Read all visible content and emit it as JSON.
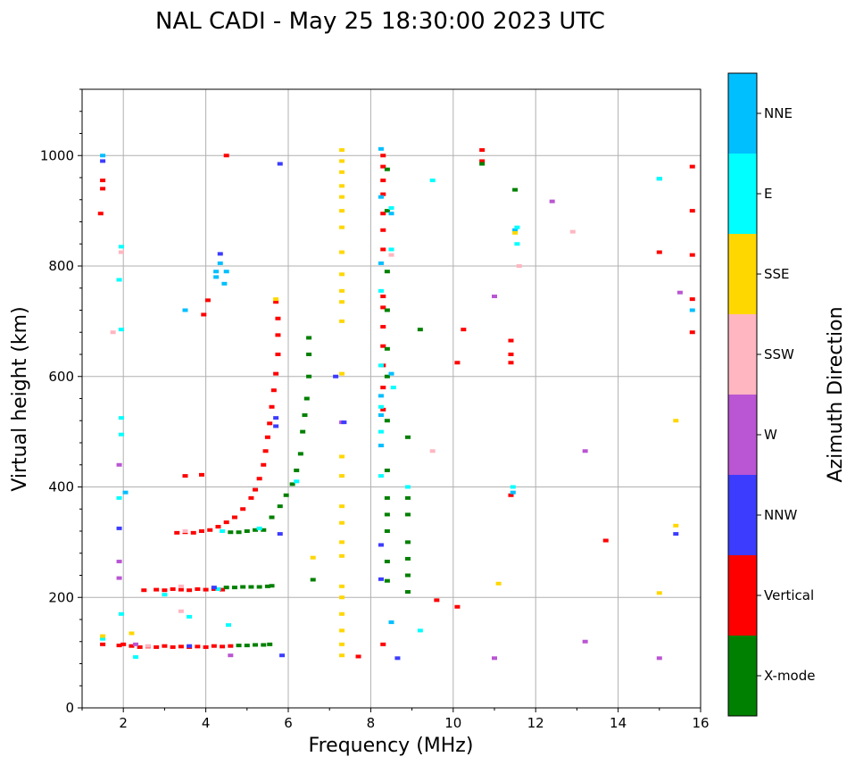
{
  "chart_data": {
    "type": "scatter",
    "title": "NAL CADI - May 25 18:30:00 2023 UTC",
    "xlabel": "Frequency (MHz)",
    "ylabel": "Virtual height (km)",
    "xlim": [
      1.0,
      16.0
    ],
    "ylim": [
      0,
      1120
    ],
    "xticks": [
      2,
      4,
      6,
      8,
      10,
      12,
      14,
      16
    ],
    "yticks": [
      0,
      200,
      400,
      600,
      800,
      1000
    ],
    "grid": true,
    "colorbar": {
      "label": "Azimuth Direction",
      "entries": [
        {
          "name": "NNE",
          "color": "#00bfff"
        },
        {
          "name": "E",
          "color": "#00ffff"
        },
        {
          "name": "SSE",
          "color": "#ffd700"
        },
        {
          "name": "SSW",
          "color": "#ffb6c1"
        },
        {
          "name": "W",
          "color": "#ba55d3"
        },
        {
          "name": "NNW",
          "color": "#3c3cff"
        },
        {
          "name": "Vertical",
          "color": "#ff0000"
        },
        {
          "name": "X-mode",
          "color": "#008000"
        }
      ]
    },
    "series": [
      {
        "name": "Vertical",
        "color": "#ff0000",
        "points": [
          [
            1.5,
            115
          ],
          [
            1.9,
            113
          ],
          [
            2.0,
            115
          ],
          [
            2.2,
            112
          ],
          [
            2.4,
            110
          ],
          [
            2.6,
            111
          ],
          [
            2.8,
            110
          ],
          [
            3.0,
            112
          ],
          [
            3.2,
            110
          ],
          [
            3.4,
            111
          ],
          [
            3.6,
            110
          ],
          [
            3.8,
            111
          ],
          [
            4.0,
            110
          ],
          [
            4.2,
            112
          ],
          [
            4.4,
            111
          ],
          [
            4.6,
            112
          ],
          [
            2.5,
            213
          ],
          [
            2.8,
            214
          ],
          [
            3.0,
            213
          ],
          [
            3.2,
            215
          ],
          [
            3.4,
            214
          ],
          [
            3.6,
            213
          ],
          [
            3.8,
            215
          ],
          [
            4.0,
            214
          ],
          [
            4.2,
            215
          ],
          [
            4.4,
            214
          ],
          [
            3.3,
            317
          ],
          [
            3.5,
            318
          ],
          [
            3.7,
            317
          ],
          [
            3.9,
            320
          ],
          [
            4.1,
            322
          ],
          [
            4.3,
            328
          ],
          [
            4.5,
            336
          ],
          [
            4.7,
            345
          ],
          [
            4.9,
            360
          ],
          [
            5.1,
            380
          ],
          [
            5.2,
            395
          ],
          [
            5.3,
            415
          ],
          [
            5.4,
            440
          ],
          [
            5.45,
            465
          ],
          [
            5.5,
            490
          ],
          [
            5.55,
            515
          ],
          [
            5.6,
            545
          ],
          [
            5.65,
            575
          ],
          [
            5.7,
            605
          ],
          [
            5.75,
            640
          ],
          [
            5.75,
            675
          ],
          [
            5.75,
            705
          ],
          [
            5.7,
            735
          ],
          [
            3.5,
            420
          ],
          [
            3.9,
            422
          ],
          [
            3.95,
            712
          ],
          [
            4.05,
            738
          ],
          [
            4.5,
            1000
          ],
          [
            1.5,
            955
          ],
          [
            1.5,
            940
          ],
          [
            1.45,
            895
          ],
          [
            8.3,
            1000
          ],
          [
            8.3,
            980
          ],
          [
            8.3,
            955
          ],
          [
            8.3,
            930
          ],
          [
            8.3,
            895
          ],
          [
            8.3,
            865
          ],
          [
            8.3,
            830
          ],
          [
            8.3,
            745
          ],
          [
            8.3,
            725
          ],
          [
            8.3,
            690
          ],
          [
            8.3,
            655
          ],
          [
            8.3,
            620
          ],
          [
            8.3,
            580
          ],
          [
            8.3,
            540
          ],
          [
            8.3,
            115
          ],
          [
            10.7,
            1010
          ],
          [
            10.7,
            990
          ],
          [
            11.4,
            665
          ],
          [
            11.4,
            640
          ],
          [
            11.4,
            625
          ],
          [
            11.4,
            385
          ],
          [
            10.1,
            625
          ],
          [
            10.25,
            685
          ],
          [
            10.1,
            183
          ],
          [
            9.6,
            195
          ],
          [
            7.7,
            93
          ],
          [
            13.7,
            303
          ],
          [
            15.0,
            825
          ],
          [
            15.8,
            980
          ],
          [
            15.8,
            900
          ],
          [
            15.8,
            820
          ],
          [
            15.8,
            740
          ],
          [
            15.8,
            680
          ]
        ]
      },
      {
        "name": "X-mode",
        "color": "#008000",
        "points": [
          [
            4.8,
            113
          ],
          [
            5.0,
            113
          ],
          [
            5.2,
            114
          ],
          [
            5.4,
            114
          ],
          [
            5.55,
            115
          ],
          [
            4.5,
            218
          ],
          [
            4.7,
            218
          ],
          [
            4.9,
            219
          ],
          [
            5.1,
            219
          ],
          [
            5.3,
            219
          ],
          [
            5.5,
            220
          ],
          [
            5.6,
            221
          ],
          [
            4.6,
            318
          ],
          [
            4.8,
            318
          ],
          [
            5.0,
            320
          ],
          [
            5.2,
            322
          ],
          [
            5.4,
            322
          ],
          [
            5.6,
            345
          ],
          [
            5.8,
            365
          ],
          [
            5.95,
            385
          ],
          [
            6.1,
            405
          ],
          [
            6.2,
            430
          ],
          [
            6.3,
            460
          ],
          [
            6.35,
            500
          ],
          [
            6.4,
            530
          ],
          [
            6.45,
            560
          ],
          [
            6.5,
            600
          ],
          [
            6.5,
            640
          ],
          [
            6.5,
            670
          ],
          [
            6.6,
            232
          ],
          [
            8.4,
            975
          ],
          [
            8.4,
            900
          ],
          [
            8.4,
            790
          ],
          [
            8.4,
            720
          ],
          [
            8.4,
            650
          ],
          [
            8.4,
            600
          ],
          [
            8.4,
            520
          ],
          [
            8.4,
            430
          ],
          [
            8.4,
            380
          ],
          [
            8.4,
            350
          ],
          [
            8.4,
            320
          ],
          [
            8.4,
            265
          ],
          [
            8.4,
            230
          ],
          [
            8.9,
            490
          ],
          [
            8.9,
            380
          ],
          [
            8.9,
            350
          ],
          [
            8.9,
            300
          ],
          [
            8.9,
            270
          ],
          [
            8.9,
            240
          ],
          [
            8.9,
            210
          ],
          [
            9.2,
            685
          ],
          [
            11.5,
            938
          ],
          [
            10.7,
            985
          ]
        ]
      },
      {
        "name": "NNE",
        "color": "#00bfff",
        "points": [
          [
            1.5,
            1000
          ],
          [
            4.25,
            790
          ],
          [
            4.35,
            805
          ],
          [
            4.5,
            790
          ],
          [
            4.45,
            768
          ],
          [
            3.5,
            720
          ],
          [
            4.25,
            780
          ],
          [
            2.05,
            390
          ],
          [
            8.25,
            1012
          ],
          [
            8.25,
            925
          ],
          [
            8.25,
            805
          ],
          [
            8.5,
            895
          ],
          [
            8.5,
            605
          ],
          [
            8.25,
            565
          ],
          [
            8.25,
            530
          ],
          [
            8.25,
            475
          ],
          [
            8.5,
            155
          ],
          [
            11.5,
            865
          ],
          [
            11.45,
            390
          ],
          [
            15.0,
            958
          ],
          [
            15.8,
            720
          ]
        ]
      },
      {
        "name": "E",
        "color": "#00ffff",
        "points": [
          [
            1.95,
            835
          ],
          [
            1.9,
            775
          ],
          [
            1.95,
            685
          ],
          [
            1.95,
            525
          ],
          [
            1.95,
            495
          ],
          [
            1.9,
            380
          ],
          [
            1.95,
            170
          ],
          [
            1.5,
            125
          ],
          [
            2.3,
            92
          ],
          [
            3.6,
            165
          ],
          [
            3.0,
            205
          ],
          [
            4.55,
            150
          ],
          [
            4.3,
            215
          ],
          [
            4.4,
            320
          ],
          [
            5.3,
            325
          ],
          [
            6.2,
            410
          ],
          [
            8.25,
            755
          ],
          [
            8.25,
            620
          ],
          [
            8.25,
            500
          ],
          [
            8.25,
            420
          ],
          [
            8.25,
            545
          ],
          [
            8.55,
            580
          ],
          [
            8.5,
            830
          ],
          [
            8.5,
            905
          ],
          [
            8.9,
            400
          ],
          [
            9.5,
            955
          ],
          [
            9.2,
            140
          ],
          [
            11.55,
            870
          ],
          [
            11.55,
            840
          ],
          [
            11.45,
            400
          ],
          [
            15.0,
            958
          ]
        ]
      },
      {
        "name": "SSE",
        "color": "#ffd700",
        "points": [
          [
            7.3,
            1010
          ],
          [
            7.3,
            990
          ],
          [
            7.3,
            970
          ],
          [
            7.3,
            945
          ],
          [
            7.3,
            925
          ],
          [
            7.3,
            900
          ],
          [
            7.3,
            870
          ],
          [
            7.3,
            825
          ],
          [
            7.3,
            785
          ],
          [
            7.3,
            755
          ],
          [
            7.3,
            735
          ],
          [
            7.3,
            700
          ],
          [
            7.3,
            605
          ],
          [
            7.3,
            455
          ],
          [
            7.3,
            420
          ],
          [
            7.3,
            365
          ],
          [
            7.3,
            335
          ],
          [
            7.3,
            300
          ],
          [
            7.3,
            275
          ],
          [
            7.3,
            220
          ],
          [
            7.3,
            200
          ],
          [
            7.3,
            170
          ],
          [
            7.3,
            140
          ],
          [
            7.3,
            115
          ],
          [
            7.3,
            95
          ],
          [
            5.7,
            740
          ],
          [
            6.6,
            272
          ],
          [
            2.2,
            135
          ],
          [
            1.5,
            130
          ],
          [
            11.5,
            860
          ],
          [
            11.1,
            225
          ],
          [
            15.0,
            208
          ],
          [
            15.4,
            520
          ],
          [
            15.4,
            330
          ]
        ]
      },
      {
        "name": "SSW",
        "color": "#ffb6c1",
        "points": [
          [
            1.95,
            825
          ],
          [
            1.75,
            680
          ],
          [
            2.6,
            112
          ],
          [
            3.4,
            220
          ],
          [
            3.4,
            175
          ],
          [
            3.5,
            320
          ],
          [
            8.5,
            820
          ],
          [
            9.5,
            465
          ],
          [
            11.6,
            800
          ],
          [
            12.9,
            862
          ]
        ]
      },
      {
        "name": "W",
        "color": "#ba55d3",
        "points": [
          [
            1.9,
            440
          ],
          [
            1.9,
            265
          ],
          [
            1.9,
            235
          ],
          [
            2.3,
            115
          ],
          [
            4.6,
            95
          ],
          [
            7.3,
            517
          ],
          [
            11.0,
            745
          ],
          [
            12.4,
            917
          ],
          [
            13.2,
            465
          ],
          [
            13.2,
            120
          ],
          [
            11.0,
            90
          ],
          [
            15.0,
            90
          ],
          [
            15.5,
            752
          ]
        ]
      },
      {
        "name": "NNW",
        "color": "#3c3cff",
        "points": [
          [
            1.5,
            990
          ],
          [
            4.35,
            822
          ],
          [
            5.8,
            985
          ],
          [
            5.7,
            525
          ],
          [
            5.7,
            510
          ],
          [
            5.8,
            315
          ],
          [
            5.85,
            95
          ],
          [
            7.15,
            600
          ],
          [
            7.35,
            517
          ],
          [
            8.25,
            295
          ],
          [
            8.25,
            233
          ],
          [
            8.65,
            90
          ],
          [
            15.4,
            315
          ],
          [
            4.2,
            218
          ],
          [
            3.6,
            112
          ],
          [
            1.9,
            325
          ]
        ]
      }
    ]
  }
}
